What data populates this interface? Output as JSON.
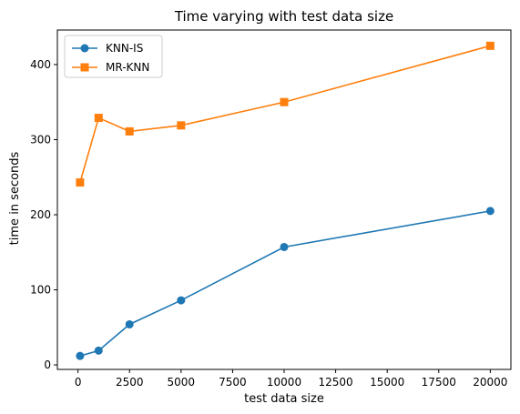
{
  "chart_data": {
    "type": "line",
    "title": "Time varying with test data size",
    "xlabel": "test data size",
    "ylabel": "time in seconds",
    "xlim": [
      -1000,
      21000
    ],
    "ylim": [
      -6,
      446
    ],
    "xticks": [
      0,
      2500,
      5000,
      7500,
      10000,
      12500,
      15000,
      17500,
      20000
    ],
    "yticks": [
      0,
      100,
      200,
      300,
      400
    ],
    "grid": false,
    "legend_position": "top-left",
    "series": [
      {
        "name": "KNN-IS",
        "color": "#1f77b4",
        "marker": "circle",
        "x": [
          100,
          1000,
          2500,
          5000,
          10000,
          20000
        ],
        "y": [
          12,
          19,
          54,
          86,
          157,
          205
        ]
      },
      {
        "name": "MR-KNN",
        "color": "#ff7f0e",
        "marker": "square",
        "x": [
          100,
          1000,
          2500,
          5000,
          10000,
          20000
        ],
        "y": [
          243,
          329,
          311,
          319,
          350,
          425
        ]
      }
    ]
  }
}
